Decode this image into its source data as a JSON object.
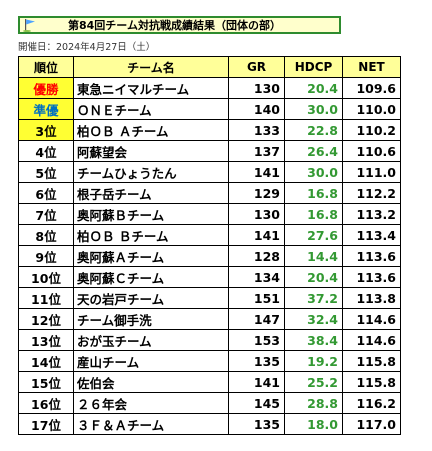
{
  "title": "第84回チーム対抗戦成績結果（団体の部）",
  "date": "開催日：2024年4月27日（土）",
  "colors": {
    "title_border": "#2e8b2e",
    "title_bg": "#ffffcc",
    "header_bg": "#ffff99",
    "highlight": "#ffff33",
    "hdcp_text": "#339933"
  },
  "icons": {
    "flag": "flag-icon"
  },
  "table": {
    "headers": {
      "rank": "順位",
      "team": "チーム名",
      "gr": "GR",
      "hdcp": "HDCP",
      "net": "NET"
    },
    "rows": [
      {
        "rank": "優勝",
        "team": "東急ニイマルチーム",
        "gr": "130",
        "hdcp": "20.4",
        "net": "109.6"
      },
      {
        "rank": "準優",
        "team": "ＯＮＥチーム",
        "gr": "140",
        "hdcp": "30.0",
        "net": "110.0"
      },
      {
        "rank": "3位",
        "team": "柏ＯＢ Ａチーム",
        "gr": "133",
        "hdcp": "22.8",
        "net": "110.2"
      },
      {
        "rank": "4位",
        "team": "阿蘇望会",
        "gr": "137",
        "hdcp": "26.4",
        "net": "110.6"
      },
      {
        "rank": "5位",
        "team": "チームひょうたん",
        "gr": "141",
        "hdcp": "30.0",
        "net": "111.0"
      },
      {
        "rank": "6位",
        "team": "根子岳チーム",
        "gr": "129",
        "hdcp": "16.8",
        "net": "112.2"
      },
      {
        "rank": "7位",
        "team": "奥阿蘇Ｂチーム",
        "gr": "130",
        "hdcp": "16.8",
        "net": "113.2"
      },
      {
        "rank": "8位",
        "team": "柏ＯＢ Ｂチーム",
        "gr": "141",
        "hdcp": "27.6",
        "net": "113.4"
      },
      {
        "rank": "9位",
        "team": "奥阿蘇Ａチーム",
        "gr": "128",
        "hdcp": "14.4",
        "net": "113.6"
      },
      {
        "rank": "10位",
        "team": "奥阿蘇Ｃチーム",
        "gr": "134",
        "hdcp": "20.4",
        "net": "113.6"
      },
      {
        "rank": "11位",
        "team": "天の岩戸チーム",
        "gr": "151",
        "hdcp": "37.2",
        "net": "113.8"
      },
      {
        "rank": "12位",
        "team": "チーム御手洗",
        "gr": "147",
        "hdcp": "32.4",
        "net": "114.6"
      },
      {
        "rank": "13位",
        "team": "おが玉チーム",
        "gr": "153",
        "hdcp": "38.4",
        "net": "114.6"
      },
      {
        "rank": "14位",
        "team": "産山チーム",
        "gr": "135",
        "hdcp": "19.2",
        "net": "115.8"
      },
      {
        "rank": "15位",
        "team": "佐伯会",
        "gr": "141",
        "hdcp": "25.2",
        "net": "115.8"
      },
      {
        "rank": "16位",
        "team": "２６年会",
        "gr": "145",
        "hdcp": "28.8",
        "net": "116.2"
      },
      {
        "rank": "17位",
        "team": "３Ｆ＆Ａチーム",
        "gr": "135",
        "hdcp": "18.0",
        "net": "117.0"
      }
    ]
  }
}
